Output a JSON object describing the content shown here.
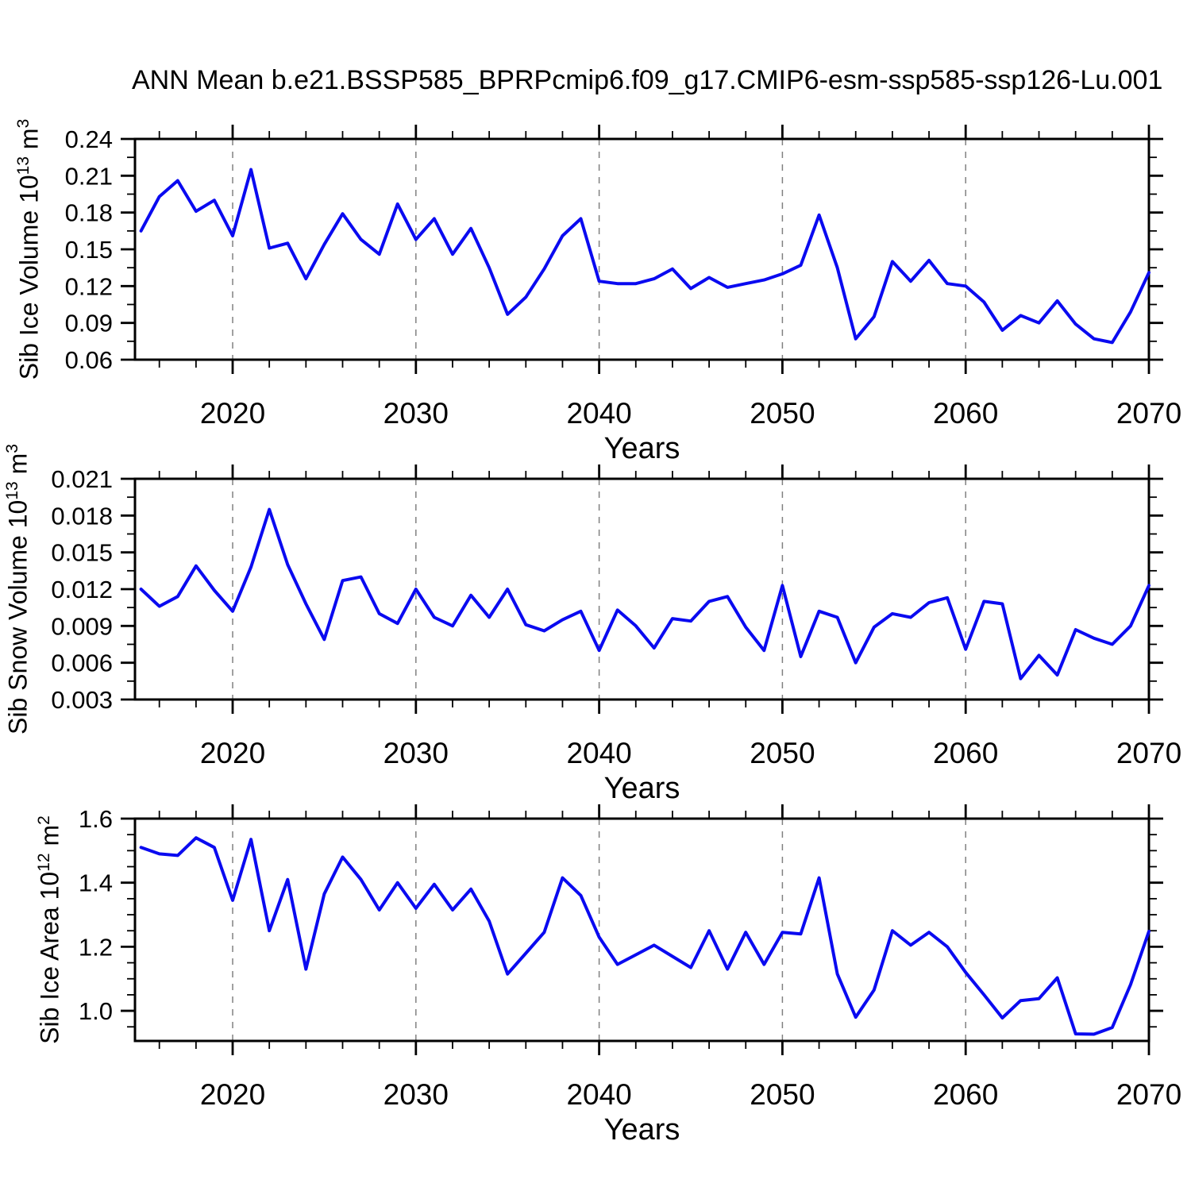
{
  "title": "ANN Mean b.e21.BSSP585_BPRPcmip6.f09_g17.CMIP6-esm-ssp585-ssp126-Lu.001",
  "colors": {
    "line": "#0a0af0",
    "grid": "#808080",
    "axis": "#000000",
    "background": "#ffffff",
    "text": "#000000"
  },
  "x_axis": {
    "label": "Years",
    "domain": [
      2014.67,
      2070
    ],
    "major_ticks": [
      2020,
      2030,
      2040,
      2050,
      2060,
      2070
    ],
    "tick_labels": [
      "2020",
      "2030",
      "2040",
      "2050",
      "2060",
      "2070"
    ],
    "minor_tick_step": 2,
    "gridline_years": [
      2020,
      2030,
      2040,
      2050,
      2060
    ]
  },
  "chart_data": [
    {
      "type": "line",
      "name": "sib-ice-volume",
      "ylabel": {
        "text": "Sib Ice Volume",
        "base": "10",
        "power": "13",
        "unit": "m",
        "unit_power": "3"
      },
      "y_domain": [
        0.06,
        0.24
      ],
      "y_major_ticks": [
        0.24,
        0.21,
        0.18,
        0.15,
        0.12,
        0.09,
        0.06
      ],
      "y_tick_labels": [
        "0.24",
        "0.21",
        "0.18",
        "0.15",
        "0.12",
        "0.09",
        "0.06"
      ],
      "y_minor_step": 0.015,
      "years": [
        2015,
        2016,
        2017,
        2018,
        2019,
        2020,
        2021,
        2022,
        2023,
        2024,
        2025,
        2026,
        2027,
        2028,
        2029,
        2030,
        2031,
        2032,
        2033,
        2034,
        2035,
        2036,
        2037,
        2038,
        2039,
        2040,
        2041,
        2042,
        2043,
        2044,
        2045,
        2046,
        2047,
        2048,
        2049,
        2050,
        2051,
        2052,
        2053,
        2054,
        2055,
        2056,
        2057,
        2058,
        2059,
        2060,
        2061,
        2062,
        2063,
        2064,
        2065,
        2066,
        2067,
        2068,
        2069,
        2070
      ],
      "values": [
        0.165,
        0.193,
        0.206,
        0.181,
        0.19,
        0.161,
        0.215,
        0.151,
        0.155,
        0.126,
        0.154,
        0.179,
        0.158,
        0.146,
        0.187,
        0.158,
        0.175,
        0.146,
        0.167,
        0.135,
        0.097,
        0.111,
        0.134,
        0.161,
        0.175,
        0.124,
        0.122,
        0.122,
        0.126,
        0.134,
        0.118,
        0.127,
        0.119,
        0.122,
        0.125,
        0.13,
        0.137,
        0.178,
        0.135,
        0.077,
        0.095,
        0.14,
        0.124,
        0.141,
        0.122,
        0.12,
        0.107,
        0.084,
        0.096,
        0.09,
        0.108,
        0.089,
        0.077,
        0.074,
        0.099,
        0.131
      ]
    },
    {
      "type": "line",
      "name": "sib-snow-volume",
      "ylabel": {
        "text": "Sib Snow Volume",
        "base": "10",
        "power": "13",
        "unit": "m",
        "unit_power": "3"
      },
      "y_domain": [
        0.003,
        0.021
      ],
      "y_major_ticks": [
        0.021,
        0.018,
        0.015,
        0.012,
        0.009,
        0.006,
        0.003
      ],
      "y_tick_labels": [
        "0.021",
        "0.018",
        "0.015",
        "0.012",
        "0.009",
        "0.006",
        "0.003"
      ],
      "y_minor_step": 0.0015,
      "years": [
        2015,
        2016,
        2017,
        2018,
        2019,
        2020,
        2021,
        2022,
        2023,
        2024,
        2025,
        2026,
        2027,
        2028,
        2029,
        2030,
        2031,
        2032,
        2033,
        2034,
        2035,
        2036,
        2037,
        2038,
        2039,
        2040,
        2041,
        2042,
        2043,
        2044,
        2045,
        2046,
        2047,
        2048,
        2049,
        2050,
        2051,
        2052,
        2053,
        2054,
        2055,
        2056,
        2057,
        2058,
        2059,
        2060,
        2061,
        2062,
        2063,
        2064,
        2065,
        2066,
        2067,
        2068,
        2069,
        2070
      ],
      "values": [
        0.012,
        0.0106,
        0.0114,
        0.0139,
        0.0119,
        0.0102,
        0.0138,
        0.0185,
        0.014,
        0.0108,
        0.0079,
        0.0127,
        0.013,
        0.01,
        0.0092,
        0.012,
        0.0097,
        0.009,
        0.0115,
        0.0097,
        0.012,
        0.0091,
        0.0086,
        0.0095,
        0.0102,
        0.007,
        0.0103,
        0.009,
        0.0072,
        0.0096,
        0.0094,
        0.011,
        0.0114,
        0.0089,
        0.007,
        0.0123,
        0.0065,
        0.0102,
        0.0097,
        0.006,
        0.0089,
        0.01,
        0.0097,
        0.0109,
        0.0113,
        0.0071,
        0.011,
        0.0108,
        0.0047,
        0.0066,
        0.005,
        0.0087,
        0.008,
        0.0075,
        0.009,
        0.0123
      ]
    },
    {
      "type": "line",
      "name": "sib-ice-area",
      "ylabel": {
        "text": "Sib Ice Area",
        "base": "10",
        "power": "12",
        "unit": "m",
        "unit_power": "2"
      },
      "y_domain": [
        0.906,
        1.6
      ],
      "y_major_ticks": [
        1.6,
        1.4,
        1.2,
        1.0
      ],
      "y_tick_labels": [
        "1.6",
        "1.4",
        "1.2",
        "1.0"
      ],
      "y_minor_step": 0.05,
      "years": [
        2015,
        2016,
        2017,
        2018,
        2019,
        2020,
        2021,
        2022,
        2023,
        2024,
        2025,
        2026,
        2027,
        2028,
        2029,
        2030,
        2031,
        2032,
        2033,
        2034,
        2035,
        2036,
        2037,
        2038,
        2039,
        2040,
        2041,
        2042,
        2043,
        2044,
        2045,
        2046,
        2047,
        2048,
        2049,
        2050,
        2051,
        2052,
        2053,
        2054,
        2055,
        2056,
        2057,
        2058,
        2059,
        2060,
        2061,
        2062,
        2063,
        2064,
        2065,
        2066,
        2067,
        2068,
        2069,
        2070
      ],
      "values": [
        1.51,
        1.49,
        1.485,
        1.54,
        1.51,
        1.345,
        1.535,
        1.25,
        1.41,
        1.13,
        1.365,
        1.48,
        1.41,
        1.315,
        1.4,
        1.32,
        1.395,
        1.315,
        1.38,
        1.28,
        1.115,
        1.18,
        1.245,
        1.415,
        1.36,
        1.23,
        1.145,
        1.175,
        1.205,
        1.17,
        1.135,
        1.25,
        1.13,
        1.245,
        1.145,
        1.245,
        1.24,
        1.415,
        1.115,
        0.98,
        1.065,
        1.25,
        1.205,
        1.245,
        1.2,
        1.12,
        1.05,
        0.978,
        1.032,
        1.038,
        1.103,
        0.928,
        0.927,
        0.948,
        1.082,
        1.248
      ]
    }
  ]
}
